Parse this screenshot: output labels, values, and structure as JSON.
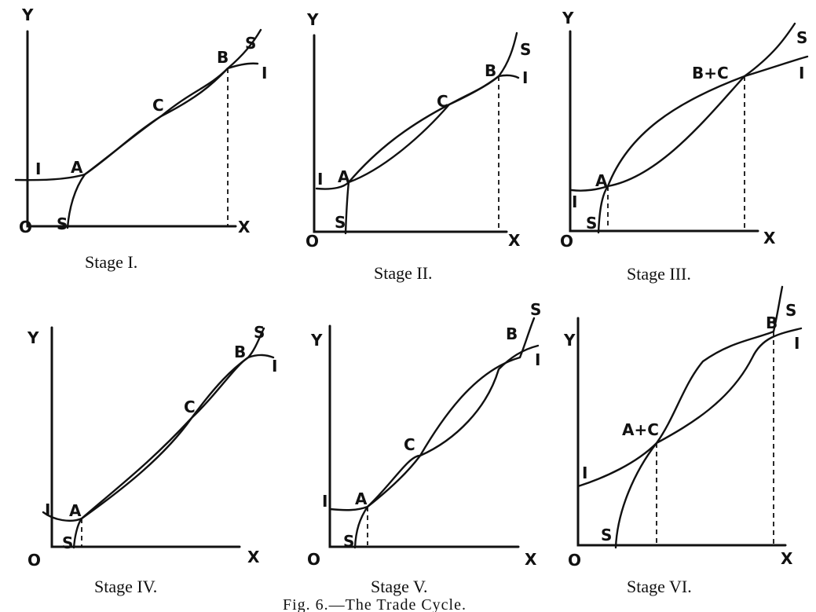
{
  "figure_caption": "Fig. 6.—The Trade Cycle.",
  "panels": [
    {
      "caption": "Stage I.",
      "labels": {
        "y": "Y",
        "x": "X",
        "origin": "O",
        "i_start": "I",
        "i_end": "I",
        "s_start": "S",
        "s_end": "S",
        "a": "A",
        "c": "C",
        "b": "B"
      }
    },
    {
      "caption": "Stage II.",
      "labels": {
        "y": "Y",
        "x": "X",
        "origin": "O",
        "i_start": "I",
        "i_end": "I",
        "s_start": "S",
        "s_end": "S",
        "a": "A",
        "c": "C",
        "b": "B"
      }
    },
    {
      "caption": "Stage III.",
      "labels": {
        "y": "Y",
        "x": "X",
        "origin": "O",
        "i_start": "I",
        "i_end": "I",
        "s_start": "S",
        "s_end": "S",
        "a": "A",
        "bc": "B+C"
      }
    },
    {
      "caption": "Stage IV.",
      "labels": {
        "y": "Y",
        "x": "X",
        "origin": "O",
        "i_start": "I",
        "i_end": "I",
        "s_start": "S",
        "s_end": "S",
        "a": "A",
        "c": "C",
        "b": "B"
      }
    },
    {
      "caption": "Stage V.",
      "labels": {
        "y": "Y",
        "x": "X",
        "origin": "O",
        "i_start": "I",
        "i_end": "I",
        "s_start": "S",
        "s_end": "S",
        "a": "A",
        "c": "C",
        "b": "B"
      }
    },
    {
      "caption": "Stage VI.",
      "labels": {
        "y": "Y",
        "x": "X",
        "origin": "O",
        "i_start": "I",
        "i_end": "I",
        "s_start": "S",
        "s_end": "S",
        "ac": "A+C",
        "b": "B"
      }
    }
  ]
}
